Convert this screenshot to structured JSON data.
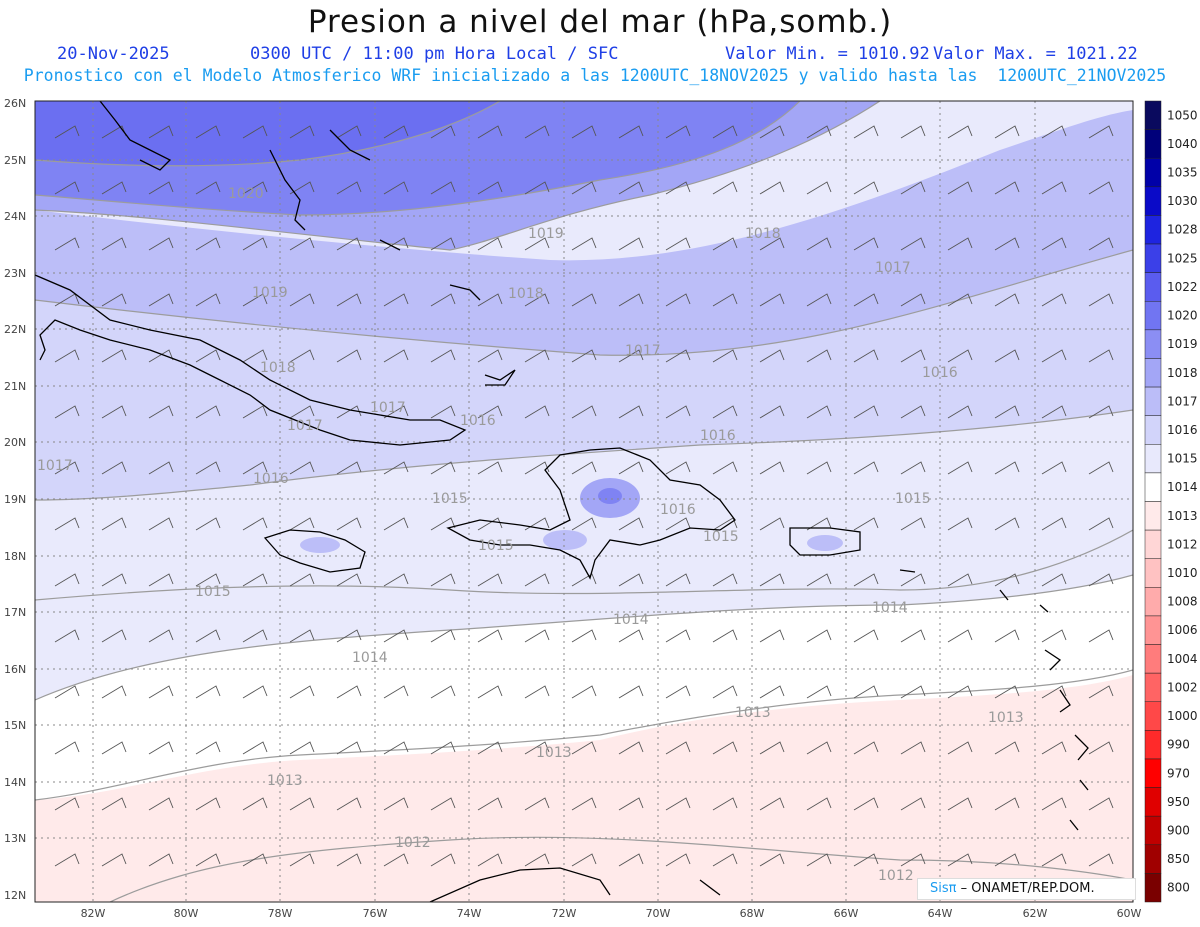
{
  "header": {
    "title": "Presion a nivel del mar (hPa,somb.)",
    "date": "20-Nov-2025",
    "time": "0300 UTC / 11:00 pm Hora Local / SFC",
    "valor_min": "Valor Min. = 1010.92",
    "valor_max": "Valor Max. = 1021.22",
    "subtitle": "Pronostico con el Modelo Atmosferico WRF inicializado a las 1200UTC_18NOV2025 y valido hasta las  1200UTC_21NOV2025"
  },
  "map": {
    "lat_labels": [
      "26N",
      "25N",
      "24N",
      "23N",
      "22N",
      "21N",
      "20N",
      "19N",
      "18N",
      "17N",
      "16N",
      "15N",
      "14N",
      "13N",
      "12N"
    ],
    "lon_labels": [
      "82W",
      "80W",
      "78W",
      "76W",
      "74W",
      "72W",
      "70W",
      "68W",
      "66W",
      "64W",
      "62W",
      "60W"
    ],
    "isobar_labels": [
      "1020",
      "1019",
      "1018",
      "1017",
      "1016",
      "1015",
      "1014",
      "1013",
      "1012"
    ]
  },
  "colorbar": {
    "levels": [
      "1050",
      "1040",
      "1035",
      "1030",
      "1028",
      "1025",
      "1022",
      "1020",
      "1019",
      "1018",
      "1017",
      "1016",
      "1015",
      "1014",
      "1013",
      "1012",
      "1010",
      "1008",
      "1006",
      "1004",
      "1002",
      "1000",
      "990",
      "970",
      "950",
      "900",
      "850",
      "800"
    ],
    "colors": [
      "#0a0a5e",
      "#00007a",
      "#0000a8",
      "#0a0ac8",
      "#1e24e0",
      "#3b40e8",
      "#5a5cef",
      "#7175f2",
      "#8b8ef4",
      "#a3a6f6",
      "#bbbdf8",
      "#d2d4fa",
      "#e8e9fc",
      "#ffffff",
      "#ffeaea",
      "#ffd6d6",
      "#ffc2c2",
      "#ffabab",
      "#ff9494",
      "#ff7c7c",
      "#ff6464",
      "#ff4848",
      "#ff2a2a",
      "#ff0000",
      "#e00000",
      "#c00000",
      "#a00000",
      "#7a0000"
    ]
  },
  "credit": {
    "sis": "Sisπ",
    "org": "– ONAMET/REP.DOM."
  }
}
